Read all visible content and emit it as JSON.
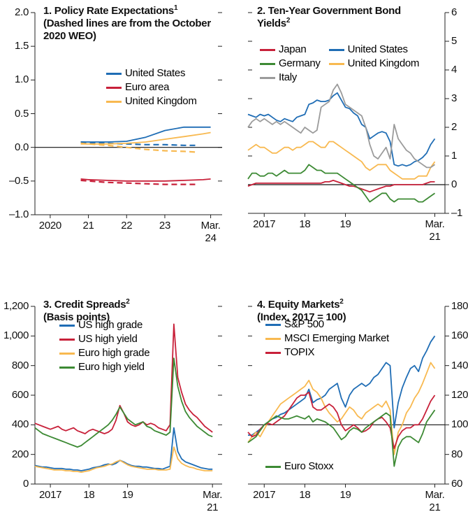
{
  "chart_data": [
    {
      "type": "line",
      "title": "1. Policy Rate Expectations",
      "title_superscript": "1",
      "subtitle": "(Dashed lines are from the October 2020 WEO)",
      "x": [
        2020.8,
        2021,
        2021.5,
        2022,
        2022.5,
        2023,
        2023.5,
        2024,
        2024.2
      ],
      "x_dashed": [
        2020.8,
        2021,
        2021.5,
        2022,
        2022.5,
        2023,
        2023.5,
        2023.8
      ],
      "series": [
        {
          "name": "United States",
          "color": "#1f6db5",
          "values": [
            0.08,
            0.08,
            0.08,
            0.09,
            0.15,
            0.25,
            0.3,
            0.3,
            0.3
          ],
          "october_2020_weo": [
            0.08,
            0.07,
            0.06,
            0.05,
            0.04,
            0.04,
            0.03,
            0.03
          ]
        },
        {
          "name": "Euro area",
          "color": "#c8213a",
          "values": [
            -0.47,
            -0.48,
            -0.49,
            -0.5,
            -0.5,
            -0.5,
            -0.49,
            -0.48,
            -0.47
          ],
          "october_2020_weo": [
            -0.49,
            -0.5,
            -0.52,
            -0.53,
            -0.54,
            -0.55,
            -0.55,
            -0.55
          ]
        },
        {
          "name": "United Kingdom",
          "color": "#f8b950",
          "values": [
            0.05,
            0.05,
            0.05,
            0.06,
            0.08,
            0.12,
            0.16,
            0.2,
            0.22
          ],
          "october_2020_weo": [
            0.06,
            0.05,
            0.03,
            0,
            -0.03,
            -0.05,
            -0.06,
            -0.07
          ]
        }
      ],
      "xlim": [
        2019.6,
        2024.5
      ],
      "xticks": [
        {
          "value": 2020,
          "label": "2020"
        },
        {
          "value": 2021,
          "label": "21"
        },
        {
          "value": 2022,
          "label": "22"
        },
        {
          "value": 2023,
          "label": "23"
        },
        {
          "value": 2024.2,
          "label": "Mar. 24"
        }
      ],
      "ylim": [
        -1,
        2
      ],
      "yticks": [
        {
          "value": 2,
          "label": "2.0"
        },
        {
          "value": 1.5,
          "label": "1.5"
        },
        {
          "value": 1,
          "label": "1.0"
        },
        {
          "value": 0.5,
          "label": "0.5"
        },
        {
          "value": 0,
          "label": "0.0"
        },
        {
          "value": -0.5,
          "label": "–0.5"
        },
        {
          "value": -1,
          "label": "–1.0"
        }
      ],
      "y_axis_side": "left",
      "baseline": 0
    },
    {
      "type": "line",
      "title": "2. Ten-Year Government Bond Yields",
      "title_superscript": "2",
      "x": [
        2016.6,
        2016.7,
        2016.8,
        2016.9,
        2017,
        2017.1,
        2017.2,
        2017.3,
        2017.4,
        2017.5,
        2017.6,
        2017.7,
        2017.8,
        2017.9,
        2018,
        2018.1,
        2018.2,
        2018.3,
        2018.4,
        2018.5,
        2018.6,
        2018.7,
        2018.8,
        2018.9,
        2019,
        2019.1,
        2019.2,
        2019.3,
        2019.4,
        2019.5,
        2019.6,
        2019.7,
        2019.8,
        2019.9,
        2020,
        2020.1,
        2020.2,
        2020.3,
        2020.4,
        2020.5,
        2020.6,
        2020.7,
        2020.8,
        2020.9,
        2021,
        2021.1,
        2021.2
      ],
      "series": [
        {
          "name": "Japan",
          "color": "#c8213a",
          "values": [
            -0.05,
            0,
            0.05,
            0.05,
            0.05,
            0.05,
            0.05,
            0.05,
            0.05,
            0.05,
            0.05,
            0.05,
            0.05,
            0.05,
            0.05,
            0.05,
            0.05,
            0.05,
            0.05,
            0.1,
            0.1,
            0.15,
            0.1,
            0.05,
            0,
            -0.05,
            -0.05,
            -0.1,
            -0.15,
            -0.2,
            -0.25,
            -0.2,
            -0.15,
            -0.1,
            -0.05,
            -0.05,
            0,
            0,
            0,
            0,
            0,
            0,
            0,
            0,
            0.05,
            0.1,
            0.1
          ]
        },
        {
          "name": "United States",
          "color": "#1f6db5",
          "values": [
            2.45,
            2.4,
            2.35,
            2.45,
            2.4,
            2.45,
            2.35,
            2.25,
            2.2,
            2.3,
            2.25,
            2.2,
            2.35,
            2.4,
            2.45,
            2.8,
            2.85,
            2.95,
            2.9,
            2.9,
            2.95,
            3.1,
            3.2,
            2.95,
            2.7,
            2.65,
            2.5,
            2.4,
            2.1,
            2,
            1.6,
            1.7,
            1.8,
            1.85,
            1.8,
            1.5,
            0.7,
            0.65,
            0.7,
            0.65,
            0.7,
            0.8,
            0.85,
            0.95,
            1.1,
            1.4,
            1.6
          ]
        },
        {
          "name": "Germany",
          "color": "#3d8a34",
          "values": [
            0.2,
            0.4,
            0.4,
            0.3,
            0.3,
            0.4,
            0.4,
            0.3,
            0.4,
            0.5,
            0.4,
            0.4,
            0.4,
            0.4,
            0.5,
            0.7,
            0.6,
            0.5,
            0.5,
            0.4,
            0.4,
            0.4,
            0.4,
            0.3,
            0.2,
            0.1,
            0,
            -0.1,
            -0.2,
            -0.4,
            -0.6,
            -0.5,
            -0.4,
            -0.3,
            -0.3,
            -0.5,
            -0.6,
            -0.5,
            -0.5,
            -0.5,
            -0.5,
            -0.5,
            -0.6,
            -0.6,
            -0.5,
            -0.4,
            -0.3
          ]
        },
        {
          "name": "United Kingdom",
          "color": "#f8b950",
          "values": [
            1.2,
            1.3,
            1.4,
            1.3,
            1.3,
            1.2,
            1.1,
            1.1,
            1.2,
            1.3,
            1.3,
            1.2,
            1.3,
            1.3,
            1.4,
            1.5,
            1.5,
            1.4,
            1.3,
            1.3,
            1.5,
            1.5,
            1.4,
            1.3,
            1.2,
            1.1,
            1,
            0.9,
            0.8,
            0.6,
            0.5,
            0.6,
            0.7,
            0.7,
            0.7,
            0.5,
            0.4,
            0.3,
            0.2,
            0.2,
            0.2,
            0.2,
            0.3,
            0.3,
            0.3,
            0.6,
            0.8
          ]
        },
        {
          "name": "Italy",
          "color": "#9b9b9b",
          "values": [
            2,
            2.2,
            2.3,
            2.2,
            2.3,
            2.2,
            2.1,
            2.2,
            2.1,
            2.2,
            2.1,
            2,
            1.9,
            1.8,
            2,
            1.9,
            1.8,
            1.9,
            2.7,
            2.8,
            2.9,
            3.3,
            3.5,
            3.2,
            2.8,
            2.7,
            2.6,
            2.5,
            2.4,
            2,
            1.4,
            1,
            0.9,
            1.1,
            1.3,
            0.9,
            2.1,
            1.6,
            1.4,
            1.2,
            1.1,
            0.9,
            0.8,
            0.7,
            0.6,
            0.6,
            0.7
          ]
        }
      ],
      "xlim": [
        2016.6,
        2021.45
      ],
      "xticks": [
        {
          "value": 2017,
          "label": "2017"
        },
        {
          "value": 2018,
          "label": "18"
        },
        {
          "value": 2019,
          "label": "19"
        },
        {
          "value": 2021.2,
          "label": "Mar. 21"
        }
      ],
      "ylim": [
        -1,
        6
      ],
      "yticks": [
        6,
        5,
        4,
        3,
        2,
        1,
        0,
        {
          "value": -1,
          "label": "–1"
        }
      ],
      "y_axis_side": "right",
      "baseline": 0
    },
    {
      "type": "line",
      "title": "3. Credit Spreads",
      "title_superscript": "2",
      "subtitle": "(Basis points)",
      "x": [
        2016.6,
        2016.7,
        2016.8,
        2016.9,
        2017,
        2017.1,
        2017.2,
        2017.3,
        2017.4,
        2017.5,
        2017.6,
        2017.7,
        2017.8,
        2017.9,
        2018,
        2018.1,
        2018.2,
        2018.3,
        2018.4,
        2018.5,
        2018.6,
        2018.7,
        2018.8,
        2018.9,
        2019,
        2019.1,
        2019.2,
        2019.3,
        2019.4,
        2019.5,
        2019.6,
        2019.7,
        2019.8,
        2019.9,
        2020,
        2020.1,
        2020.2,
        2020.3,
        2020.4,
        2020.5,
        2020.6,
        2020.7,
        2020.8,
        2020.9,
        2021,
        2021.1,
        2021.2
      ],
      "series": [
        {
          "name": "US high grade",
          "color": "#1f6db5",
          "values": [
            125,
            120,
            115,
            115,
            110,
            105,
            105,
            105,
            100,
            100,
            95,
            95,
            90,
            95,
            100,
            110,
            115,
            120,
            130,
            135,
            130,
            140,
            160,
            150,
            135,
            125,
            120,
            120,
            115,
            115,
            110,
            105,
            105,
            100,
            110,
            120,
            380,
            220,
            170,
            150,
            140,
            130,
            120,
            110,
            105,
            100,
            100
          ]
        },
        {
          "name": "US high yield",
          "color": "#c8213a",
          "values": [
            410,
            400,
            390,
            380,
            370,
            380,
            390,
            370,
            360,
            370,
            380,
            360,
            350,
            340,
            360,
            370,
            360,
            350,
            340,
            350,
            370,
            430,
            530,
            480,
            420,
            400,
            390,
            400,
            420,
            400,
            410,
            400,
            380,
            370,
            360,
            400,
            1080,
            720,
            620,
            540,
            500,
            470,
            450,
            420,
            390,
            370,
            350
          ]
        },
        {
          "name": "Euro high grade",
          "color": "#f8b950",
          "values": [
            120,
            115,
            110,
            105,
            100,
            95,
            95,
            95,
            90,
            90,
            85,
            85,
            80,
            85,
            90,
            100,
            110,
            115,
            120,
            130,
            135,
            150,
            160,
            145,
            130,
            120,
            115,
            110,
            105,
            100,
            100,
            100,
            95,
            95,
            95,
            100,
            250,
            170,
            140,
            125,
            115,
            110,
            100,
            95,
            90,
            90,
            90
          ]
        },
        {
          "name": "Euro high yield",
          "color": "#3d8a34",
          "values": [
            380,
            360,
            340,
            330,
            320,
            310,
            300,
            290,
            280,
            270,
            260,
            250,
            260,
            280,
            300,
            320,
            340,
            360,
            380,
            400,
            430,
            470,
            520,
            480,
            440,
            420,
            400,
            410,
            420,
            390,
            380,
            360,
            350,
            340,
            330,
            350,
            850,
            660,
            560,
            490,
            450,
            420,
            390,
            370,
            350,
            330,
            320
          ]
        }
      ],
      "xlim": [
        2016.6,
        2021.45
      ],
      "xticks": [
        {
          "value": 2017,
          "label": "2017"
        },
        {
          "value": 2018,
          "label": "18"
        },
        {
          "value": 2019,
          "label": "19"
        },
        {
          "value": 2021.2,
          "label": "Mar. 21"
        }
      ],
      "ylim": [
        0,
        1200
      ],
      "yticks": [
        {
          "value": 1200,
          "label": "1,200"
        },
        {
          "value": 1000,
          "label": "1,000"
        },
        800,
        600,
        400,
        200,
        0
      ],
      "y_axis_side": "left"
    },
    {
      "type": "line",
      "title": "4. Equity Markets",
      "title_superscript": "2",
      "subtitle": "(Index, 2017 = 100)",
      "x": [
        2016.6,
        2016.7,
        2016.8,
        2016.9,
        2017,
        2017.1,
        2017.2,
        2017.3,
        2017.4,
        2017.5,
        2017.6,
        2017.7,
        2017.8,
        2017.9,
        2018,
        2018.1,
        2018.2,
        2018.3,
        2018.4,
        2018.5,
        2018.6,
        2018.7,
        2018.8,
        2018.9,
        2019,
        2019.1,
        2019.2,
        2019.3,
        2019.4,
        2019.5,
        2019.6,
        2019.7,
        2019.8,
        2019.9,
        2020,
        2020.1,
        2020.2,
        2020.3,
        2020.4,
        2020.5,
        2020.6,
        2020.7,
        2020.8,
        2020.9,
        2021,
        2021.1,
        2021.2
      ],
      "series": [
        {
          "name": "S&P 500",
          "color": "#1f6db5",
          "values": [
            93,
            93,
            95,
            97,
            100,
            102,
            104,
            105,
            107,
            108,
            110,
            112,
            114,
            116,
            118,
            124,
            115,
            117,
            118,
            120,
            124,
            126,
            128,
            118,
            112,
            120,
            124,
            126,
            128,
            126,
            128,
            132,
            134,
            138,
            142,
            140,
            98,
            115,
            125,
            132,
            138,
            140,
            136,
            145,
            150,
            156,
            160
          ]
        },
        {
          "name": "MSCI Emerging Market",
          "color": "#f8b950",
          "values": [
            88,
            92,
            95,
            92,
            97,
            102,
            106,
            110,
            114,
            116,
            118,
            120,
            122,
            124,
            126,
            130,
            124,
            122,
            118,
            112,
            108,
            105,
            102,
            104,
            108,
            112,
            110,
            106,
            104,
            108,
            110,
            112,
            114,
            112,
            116,
            110,
            80,
            95,
            100,
            108,
            112,
            118,
            122,
            128,
            135,
            142,
            138
          ]
        },
        {
          "name": "TOPIX",
          "color": "#c8213a",
          "values": [
            95,
            92,
            93,
            97,
            100,
            101,
            100,
            102,
            104,
            106,
            110,
            114,
            118,
            120,
            120,
            122,
            112,
            110,
            110,
            112,
            114,
            112,
            108,
            100,
            96,
            98,
            100,
            98,
            95,
            96,
            98,
            102,
            104,
            105,
            102,
            98,
            84,
            92,
            96,
            98,
            98,
            100,
            100,
            104,
            110,
            116,
            120
          ]
        },
        {
          "name": "Euro Stoxx",
          "color": "#3d8a34",
          "values": [
            88,
            90,
            92,
            96,
            100,
            102,
            104,
            106,
            105,
            104,
            104,
            105,
            106,
            105,
            104,
            106,
            102,
            104,
            103,
            102,
            100,
            98,
            94,
            90,
            92,
            96,
            98,
            97,
            95,
            98,
            100,
            102,
            104,
            106,
            108,
            106,
            72,
            85,
            90,
            92,
            92,
            90,
            88,
            94,
            102,
            106,
            110
          ]
        }
      ],
      "xlim": [
        2016.6,
        2021.45
      ],
      "xticks": [
        {
          "value": 2017,
          "label": "2017"
        },
        {
          "value": 2018,
          "label": "18"
        },
        {
          "value": 2019,
          "label": "19"
        },
        {
          "value": 2021.2,
          "label": "Mar. 21"
        }
      ],
      "ylim": [
        60,
        180
      ],
      "yticks": [
        180,
        160,
        140,
        120,
        100,
        80,
        60
      ],
      "y_axis_side": "right",
      "baseline": 100
    }
  ]
}
